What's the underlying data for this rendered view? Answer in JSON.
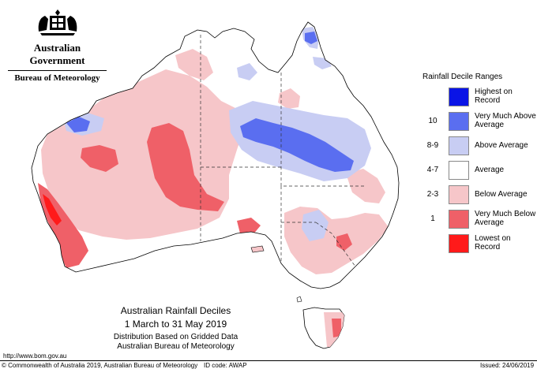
{
  "header": {
    "government": "Australian Government",
    "bureau": "Bureau of Meteorology"
  },
  "legend": {
    "title": "Rainfall Decile Ranges",
    "items": [
      {
        "range": "",
        "label": "Highest on Record",
        "color": "#0a14e6"
      },
      {
        "range": "10",
        "label": "Very Much Above Average",
        "color": "#5a6ef0"
      },
      {
        "range": "8-9",
        "label": "Above Average",
        "color": "#c8cdf3"
      },
      {
        "range": "4-7",
        "label": "Average",
        "color": "#ffffff"
      },
      {
        "range": "2-3",
        "label": "Below Average",
        "color": "#f6c6c9"
      },
      {
        "range": "1",
        "label": "Very Much Below Average",
        "color": "#ef6068"
      },
      {
        "range": "",
        "label": "Lowest on Record",
        "color": "#ff1a1a"
      }
    ]
  },
  "map_title": {
    "line1": "Australian Rainfall Deciles",
    "line2": "1 March to 31 May 2019",
    "line3": "Distribution Based on Gridded Data",
    "line4": "Australian Bureau of Meteorology"
  },
  "footer": {
    "url": "http://www.bom.gov.au",
    "copyright": "© Commonwealth of Australia 2019, Australian Bureau of Meteorology",
    "id_code": "ID code: AWAP",
    "issued": "Issued: 24/06/2019"
  }
}
